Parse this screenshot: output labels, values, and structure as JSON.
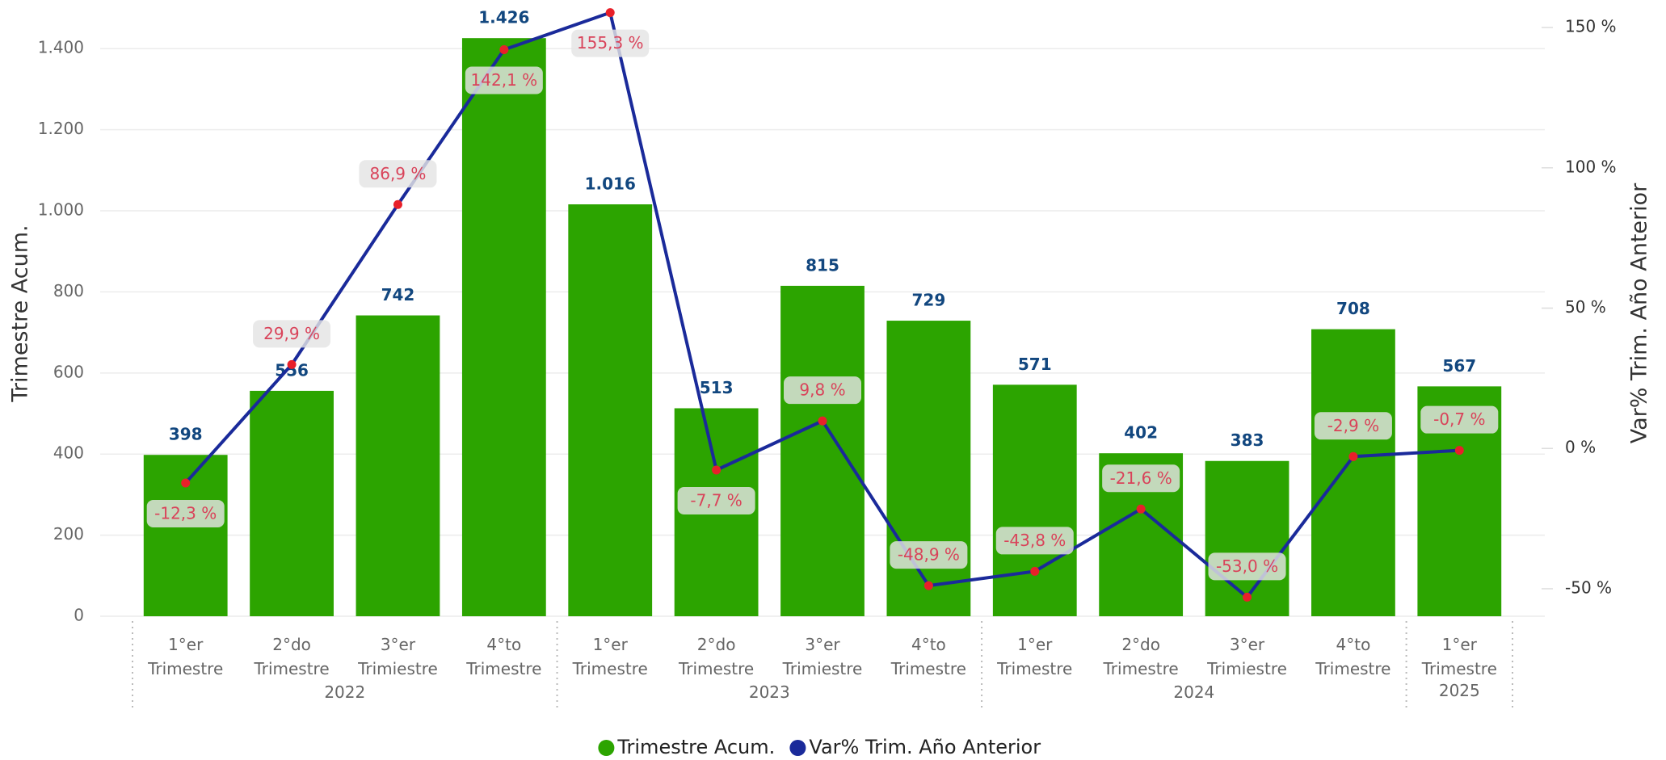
{
  "chart_data": {
    "type": "bar-line",
    "ylabel": "Trimestre Acum.",
    "y2label": "Var% Trim. Año Anterior",
    "category_groups": [
      {
        "label": "2022",
        "categories": [
          "1°er Trimestre",
          "2°do Trimestre",
          "3°er Trimiestre",
          "4°to Trimestre"
        ]
      },
      {
        "label": "2023",
        "categories": [
          "1°er Trimestre",
          "2°do Trimestre",
          "3°er Trimiestre",
          "4°to Trimestre"
        ]
      },
      {
        "label": "2024",
        "categories": [
          "1°er Trimestre",
          "2°do Trimestre",
          "3°er Trimiestre",
          "4°to Trimestre"
        ]
      },
      {
        "label": "2025",
        "categories": [
          "1°er Trimestre"
        ]
      }
    ],
    "series": [
      {
        "name": "Trimestre Acum.",
        "type": "bar",
        "color": "#2ca400",
        "values": [
          398,
          556,
          742,
          1426,
          1016,
          513,
          815,
          729,
          571,
          402,
          383,
          708,
          567
        ],
        "value_labels": [
          "398",
          "556",
          "742",
          "1.426",
          "1.016",
          "513",
          "815",
          "729",
          "571",
          "402",
          "383",
          "708",
          "567"
        ]
      },
      {
        "name": "Var% Trim. Año Anterior",
        "type": "line",
        "axis": "y2",
        "color": "#1a2a9a",
        "marker_color": "#e8202a",
        "values": [
          -12.3,
          29.9,
          86.9,
          142.1,
          155.3,
          -7.7,
          9.8,
          -48.9,
          -43.8,
          -21.6,
          -53.0,
          -2.9,
          -0.7
        ],
        "value_labels": [
          "-12,3 %",
          "29,9 %",
          "86,9 %",
          "142,1 %",
          "155,3 %",
          "-7,7 %",
          "9,8 %",
          "-48,9 %",
          "-43,8 %",
          "-21,6 %",
          "-53,0 %",
          "-2,9 %",
          "-0,7 %"
        ]
      }
    ],
    "ylim": [
      0,
      1520
    ],
    "yticks": [
      0,
      200,
      400,
      600,
      800,
      {
        "value": 1000,
        "label": "1.000"
      },
      {
        "value": 1200,
        "label": "1.200"
      },
      {
        "value": 1400,
        "label": "1.400"
      }
    ],
    "y2lim": [
      -59.8,
      159.8
    ],
    "y2ticks": [
      {
        "value": -50,
        "label": "-50 %"
      },
      {
        "value": 0,
        "label": "0 %"
      },
      {
        "value": 50,
        "label": "50 %"
      },
      {
        "value": 100,
        "label": "100 %"
      },
      {
        "value": 150,
        "label": "150 %"
      }
    ],
    "grid": true,
    "legend": "bottom"
  }
}
